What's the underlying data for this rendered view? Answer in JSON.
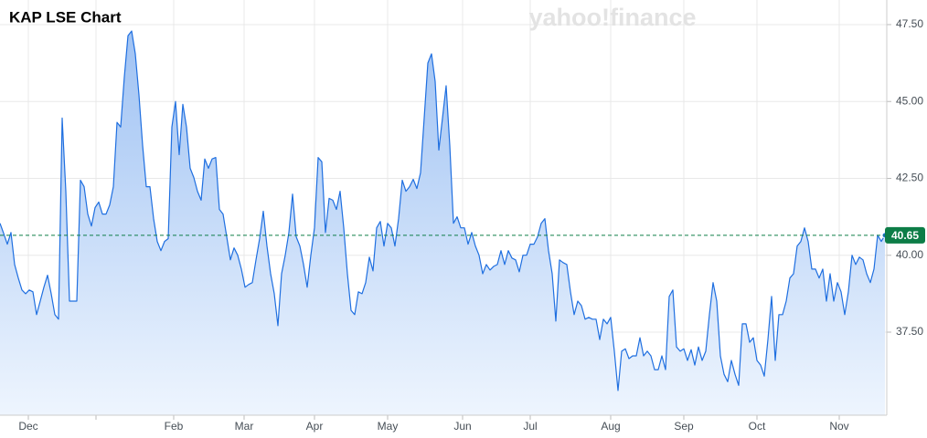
{
  "chart_data": {
    "type": "area",
    "title": "KAP LSE Chart",
    "watermark": "yahoo!finance",
    "color": "#1f6fe0",
    "fill_top": "#9fc2f3",
    "fill_bottom": "#eef5fe",
    "grid_color": "#e8e8e8",
    "last_color": "#0d7d47",
    "grid": true,
    "xlim": [
      0,
      242
    ],
    "xticks": [
      {
        "value": 7.75,
        "label": "Dec"
      },
      {
        "value": 26.25,
        "label": null
      },
      {
        "value": 47.5,
        "label": "Feb"
      },
      {
        "value": 66.75,
        "label": "Mar"
      },
      {
        "value": 86,
        "label": "Apr"
      },
      {
        "value": 106,
        "label": "May"
      },
      {
        "value": 126.5,
        "label": "Jun"
      },
      {
        "value": 145,
        "label": "Jul"
      },
      {
        "value": 167,
        "label": "Aug"
      },
      {
        "value": 187,
        "label": "Sep"
      },
      {
        "value": 207,
        "label": "Oct"
      },
      {
        "value": 229.5,
        "label": "Nov"
      }
    ],
    "ylim": [
      34.8,
      48.3
    ],
    "yticks": [
      {
        "value": 37.5,
        "label": "37.50"
      },
      {
        "value": 40,
        "label": "40.00"
      },
      {
        "value": 42.5,
        "label": "42.50"
      },
      {
        "value": 45,
        "label": "45.00"
      },
      {
        "value": 47.5,
        "label": "47.50"
      }
    ],
    "last_value": 40.65,
    "values": [
      41.04,
      40.71,
      40.36,
      40.74,
      39.7,
      39.26,
      38.87,
      38.75,
      38.87,
      38.81,
      38.07,
      38.51,
      38.96,
      39.35,
      38.75,
      38.07,
      37.92,
      44.46,
      42.08,
      38.51,
      38.51,
      38.51,
      42.44,
      42.23,
      41.34,
      40.95,
      41.55,
      41.73,
      41.34,
      41.34,
      41.64,
      42.23,
      44.32,
      44.17,
      45.8,
      47.14,
      47.29,
      46.55,
      45.21,
      43.57,
      42.23,
      42.23,
      41.19,
      40.45,
      40.15,
      40.45,
      40.54,
      44.17,
      45.0,
      43.27,
      44.91,
      44.17,
      42.83,
      42.53,
      42.08,
      41.79,
      43.13,
      42.83,
      43.13,
      43.18,
      41.49,
      41.34,
      40.6,
      39.85,
      40.24,
      40.0,
      39.55,
      38.96,
      39.05,
      39.11,
      39.85,
      40.54,
      41.43,
      40.3,
      39.4,
      38.75,
      37.71,
      39.4,
      40.0,
      40.74,
      41.99,
      40.6,
      40.3,
      39.7,
      38.96,
      40.0,
      40.89,
      43.18,
      43.04,
      40.74,
      41.85,
      41.79,
      41.49,
      42.08,
      40.89,
      39.4,
      38.21,
      38.07,
      38.81,
      38.75,
      39.11,
      39.94,
      39.49,
      40.89,
      41.1,
      40.3,
      41.04,
      40.89,
      40.3,
      41.19,
      42.44,
      42.08,
      42.23,
      42.47,
      42.17,
      42.68,
      44.46,
      46.25,
      46.55,
      45.65,
      43.42,
      44.46,
      45.51,
      43.57,
      41.04,
      41.25,
      40.89,
      40.89,
      40.36,
      40.74,
      40.3,
      40.0,
      39.4,
      39.7,
      39.52,
      39.64,
      39.7,
      40.15,
      39.7,
      40.15,
      39.91,
      39.85,
      39.46,
      40.0,
      40.0,
      40.36,
      40.36,
      40.6,
      41.04,
      41.19,
      40.15,
      39.4,
      37.86,
      39.85,
      39.76,
      39.7,
      38.81,
      38.07,
      38.51,
      38.36,
      37.92,
      37.98,
      37.92,
      37.92,
      37.26,
      37.92,
      37.77,
      37.98,
      36.88,
      35.6,
      36.88,
      36.96,
      36.64,
      36.73,
      36.73,
      37.32,
      36.73,
      36.88,
      36.73,
      36.28,
      36.28,
      36.73,
      36.28,
      38.66,
      38.87,
      37.02,
      36.88,
      36.96,
      36.58,
      36.93,
      36.43,
      37.02,
      36.58,
      36.88,
      38.07,
      39.11,
      38.51,
      36.73,
      36.13,
      35.89,
      36.58,
      36.13,
      35.77,
      37.77,
      37.77,
      37.17,
      37.32,
      36.58,
      36.43,
      36.07,
      37.26,
      38.66,
      36.58,
      38.07,
      38.07,
      38.51,
      39.26,
      39.4,
      40.3,
      40.45,
      40.89,
      40.45,
      39.55,
      39.55,
      39.26,
      39.55,
      38.51,
      39.4,
      38.51,
      39.11,
      38.81,
      38.07,
      38.81,
      40.0,
      39.7,
      39.94,
      39.85,
      39.4,
      39.11,
      39.55,
      40.65,
      40.45,
      40.65
    ]
  }
}
